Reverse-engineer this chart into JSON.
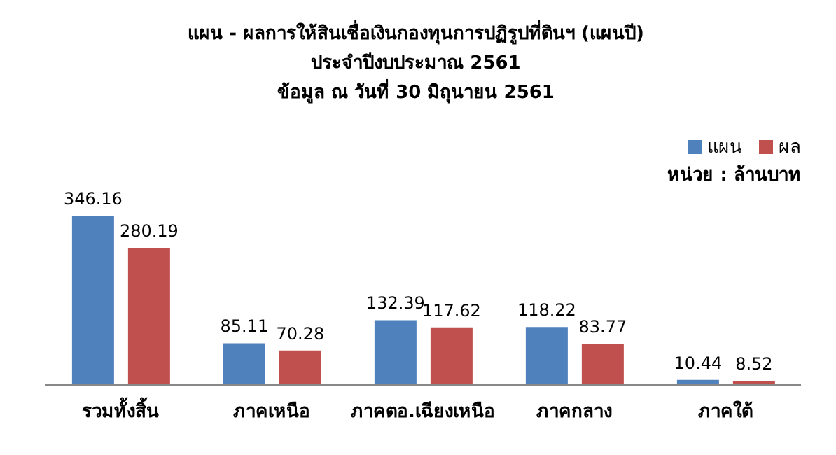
{
  "chart_data": {
    "type": "bar",
    "title": "แผน - ผลการให้สินเชื่อเงินกองทุนการปฏิรูปที่ดินฯ (แผนปี)",
    "subtitle": "ประจำปีงบประมาณ 2561\nข้อมูล ณ วันที่ 30 มิถุนายน 2561",
    "annotations": [
      "หน่วย : ล้านบาท"
    ],
    "categories": [
      "รวมทั้งสิ้น",
      "ภาคเหนือ",
      "ภาคตอ.เฉียงเหนือ",
      "ภาคกลาง",
      "ภาคใต้"
    ],
    "series": [
      {
        "name": "แผน",
        "color": "#4f81bd",
        "values": [
          346.16,
          85.11,
          132.39,
          118.22,
          10.44
        ]
      },
      {
        "name": "ผล",
        "color": "#c0504d",
        "values": [
          280.19,
          70.28,
          117.62,
          83.77,
          8.52
        ]
      }
    ],
    "data_labels": true,
    "legend": "top right",
    "grid": false
  }
}
